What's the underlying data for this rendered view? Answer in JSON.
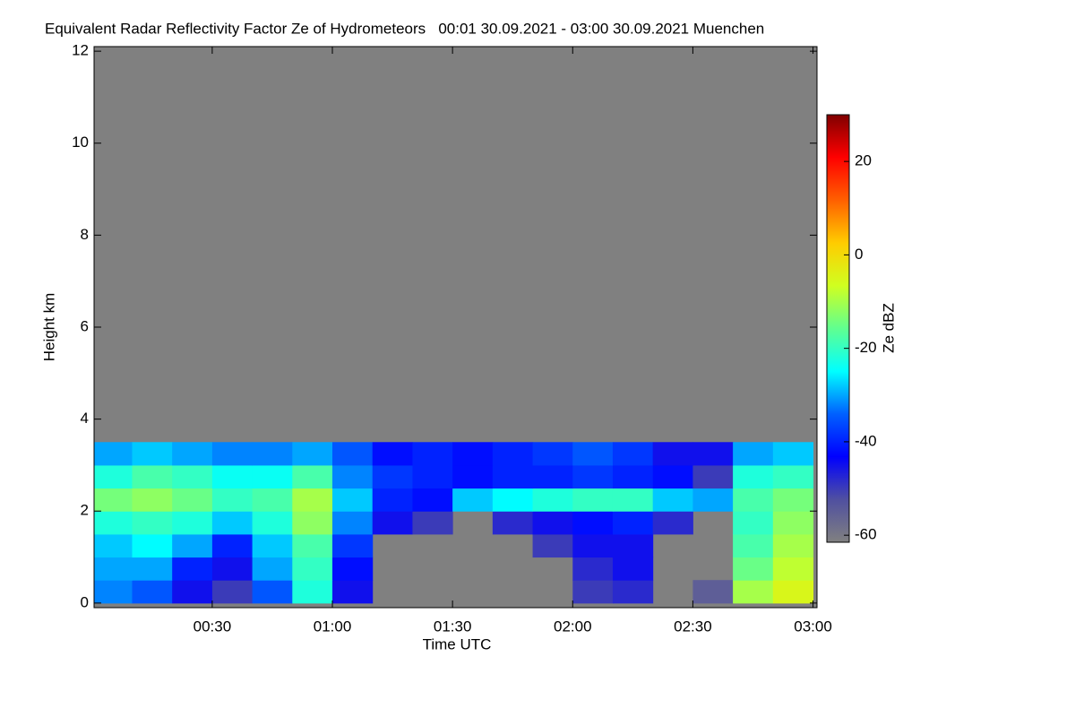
{
  "chart_data": {
    "type": "heatmap",
    "title": "Equivalent Radar Reflectivity Factor Ze of Hydrometeors   00:01 30.09.2021 - 03:00 30.09.2021 Muenchen",
    "xlabel": "Time UTC",
    "ylabel": "Height km",
    "colorbar_label": "Ze dBZ",
    "background": "#808080",
    "x": [
      5,
      15,
      25,
      35,
      45,
      55,
      65,
      75,
      85,
      95,
      105,
      115,
      125,
      135,
      145,
      155,
      165,
      175
    ],
    "y": [
      0.25,
      0.75,
      1.25,
      1.75,
      2.25,
      2.75,
      3.25
    ],
    "z": [
      [
        -32,
        -35,
        -45,
        -50,
        -35,
        -22,
        -45,
        null,
        null,
        null,
        null,
        null,
        -50,
        -48,
        null,
        -55,
        -10,
        -5
      ],
      [
        -30,
        -30,
        -40,
        -45,
        -30,
        -20,
        -42,
        null,
        null,
        null,
        null,
        null,
        -48,
        -45,
        null,
        null,
        -15,
        -8
      ],
      [
        -28,
        -25,
        -30,
        -40,
        -28,
        -18,
        -38,
        null,
        null,
        null,
        null,
        -50,
        -45,
        -45,
        null,
        null,
        -18,
        -10
      ],
      [
        -22,
        -20,
        -22,
        -28,
        -22,
        -12,
        -32,
        -45,
        -50,
        null,
        -48,
        -45,
        -42,
        -40,
        -48,
        null,
        -20,
        -12
      ],
      [
        -14,
        -12,
        -15,
        -20,
        -18,
        -10,
        -28,
        -40,
        -42,
        -28,
        -25,
        -22,
        -20,
        -20,
        -28,
        -30,
        -18,
        -14
      ],
      [
        -22,
        -18,
        -20,
        -24,
        -24,
        -18,
        -32,
        -38,
        -40,
        -42,
        -40,
        -40,
        -38,
        -40,
        -42,
        -50,
        -22,
        -20
      ],
      [
        -30,
        -28,
        -30,
        -32,
        -32,
        -30,
        -35,
        -42,
        -40,
        -42,
        -40,
        -38,
        -35,
        -38,
        -45,
        -45,
        -30,
        -28
      ]
    ],
    "xlim": [
      0.5,
      181
    ],
    "xticks": [
      {
        "value": 30,
        "label": "00:30"
      },
      {
        "value": 60,
        "label": "01:00"
      },
      {
        "value": 90,
        "label": "01:30"
      },
      {
        "value": 120,
        "label": "02:00"
      },
      {
        "value": 150,
        "label": "02:30"
      },
      {
        "value": 180,
        "label": "03:00"
      }
    ],
    "ylim": [
      -0.1,
      12.1
    ],
    "yticks": [
      0,
      2,
      4,
      6,
      8,
      10,
      12
    ],
    "zlim": [
      -61.5,
      30
    ],
    "zticks": [
      -60,
      -40,
      -20,
      0,
      20
    ],
    "colormap": [
      "#808080",
      "#5050a0",
      "#0000ff",
      "#0060ff",
      "#00ffff",
      "#60ff90",
      "#d0ff20",
      "#ffcc00",
      "#ff6000",
      "#ff0000",
      "#800000"
    ]
  }
}
